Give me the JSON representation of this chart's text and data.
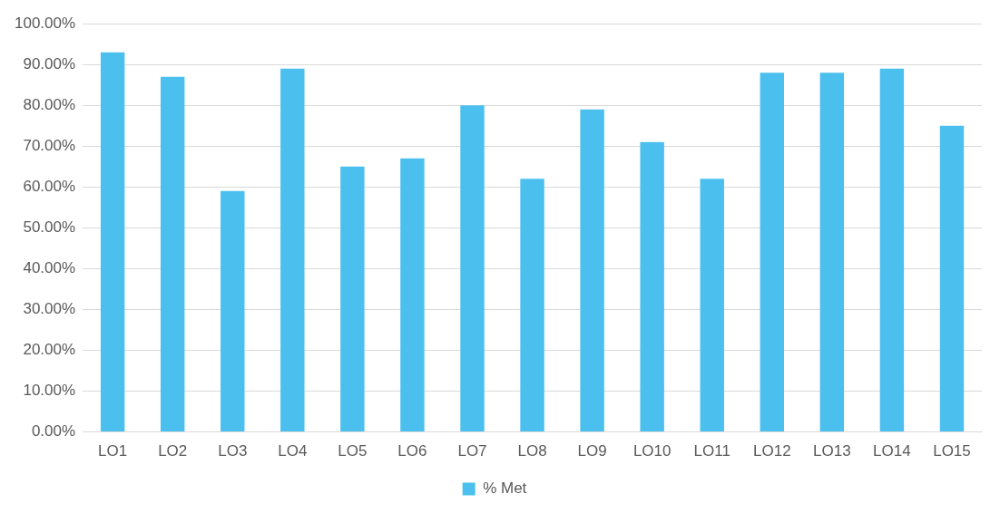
{
  "chart_data": {
    "type": "bar",
    "categories": [
      "LO1",
      "LO2",
      "LO3",
      "LO4",
      "LO5",
      "LO6",
      "LO7",
      "LO8",
      "LO9",
      "LO10",
      "LO11",
      "LO12",
      "LO13",
      "LO14",
      "LO15"
    ],
    "series": [
      {
        "name": "% Met",
        "color": "#4bc0ef",
        "values": [
          93,
          87,
          59,
          89,
          65,
          67,
          80,
          62,
          79,
          71,
          62,
          88,
          88,
          89,
          75
        ]
      }
    ],
    "ylim": [
      0,
      100
    ],
    "yticks": [
      {
        "value": 0,
        "label": "0.00%"
      },
      {
        "value": 10,
        "label": "10.00%"
      },
      {
        "value": 20,
        "label": "20.00%"
      },
      {
        "value": 30,
        "label": "30.00%"
      },
      {
        "value": 40,
        "label": "40.00%"
      },
      {
        "value": 50,
        "label": "50.00%"
      },
      {
        "value": 60,
        "label": "60.00%"
      },
      {
        "value": 70,
        "label": "70.00%"
      },
      {
        "value": 80,
        "label": "80.00%"
      },
      {
        "value": 90,
        "label": "90.00%"
      },
      {
        "value": 100,
        "label": "100.00%"
      }
    ],
    "grid": "y",
    "legend": "bottom"
  }
}
